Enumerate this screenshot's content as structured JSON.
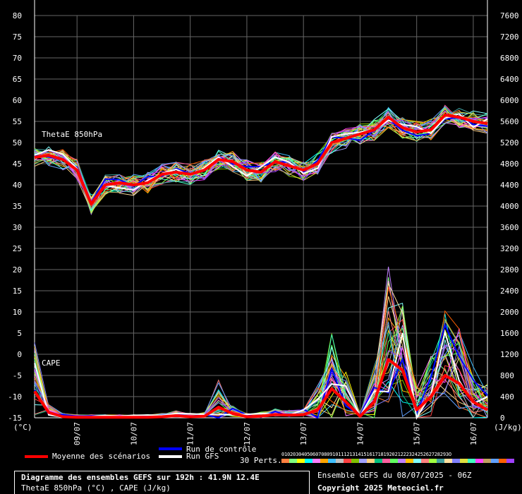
{
  "chart_data": {
    "type": "line",
    "left_axis": {
      "unit": "(°C)",
      "ticks": [
        "80",
        "75",
        "70",
        "65",
        "60",
        "55",
        "50",
        "45",
        "40",
        "35",
        "30",
        "25",
        "20",
        "15",
        "10",
        "5",
        "0",
        "-5",
        "-10",
        "-15"
      ],
      "range": [
        -15,
        80
      ]
    },
    "right_axis": {
      "unit": "(J/kg)",
      "ticks": [
        "7600",
        "7200",
        "6800",
        "6400",
        "6000",
        "5600",
        "5200",
        "4800",
        "4400",
        "4000",
        "3600",
        "3200",
        "2800",
        "2400",
        "2000",
        "1600",
        "1200",
        "800",
        "400",
        "0"
      ],
      "range": [
        0,
        7600
      ]
    },
    "x_ticks": [
      "09/07",
      "10/07",
      "11/07",
      "12/07",
      "13/07",
      "14/07",
      "15/07",
      "16/07"
    ],
    "grid": true,
    "annotations": {
      "thetae": "ThetaE 850hPa",
      "cape": "CAPE"
    },
    "series": [
      {
        "name": "ThetaE 850hPa",
        "role": "mean",
        "color": "#ff0000",
        "x_hours": [
          0,
          6,
          12,
          18,
          24,
          30,
          36,
          42,
          48,
          54,
          60,
          66,
          72,
          78,
          84,
          90,
          96,
          102,
          108,
          114,
          120,
          126,
          132,
          138,
          144,
          150,
          156,
          162,
          168,
          174,
          180,
          186,
          192
        ],
        "values": [
          46.5,
          47,
          46,
          43.5,
          35.5,
          40,
          40.5,
          40,
          40.5,
          42.5,
          43,
          42.5,
          43.5,
          46,
          45.5,
          43.5,
          43,
          45.5,
          44.5,
          43.5,
          45,
          50,
          51,
          52,
          53,
          56,
          53.5,
          52.5,
          53,
          56.5,
          56,
          55,
          54.5
        ]
      },
      {
        "name": "CAPE",
        "role": "mean",
        "color": "#ff0000",
        "x_hours": [
          0,
          6,
          12,
          18,
          24,
          30,
          36,
          42,
          48,
          54,
          60,
          66,
          72,
          78,
          84,
          90,
          96,
          102,
          108,
          114,
          120,
          126,
          132,
          138,
          144,
          150,
          156,
          162,
          168,
          174,
          180,
          186,
          192
        ],
        "values": [
          500,
          100,
          20,
          10,
          10,
          10,
          10,
          10,
          10,
          20,
          40,
          20,
          30,
          200,
          80,
          20,
          30,
          60,
          50,
          60,
          150,
          550,
          300,
          30,
          300,
          1100,
          900,
          150,
          400,
          800,
          650,
          300,
          150
        ]
      }
    ]
  },
  "legend": {
    "mean_label": "Moyenne des scénarios",
    "control_label": "Run de contrôle",
    "gfs_label": "Run GFS",
    "perts_label": "30 Perts.",
    "pert_numbers": "01020304050607080910111213141516171819202122232425262728293O",
    "colors": {
      "mean": "#ff0000",
      "control": "#0000ff",
      "gfs": "#ffffff"
    }
  },
  "info": {
    "title": "Diagramme des ensembles GEFS sur 192h : 41.9N 12.4E",
    "subtitle": "ThetaE 850hPa (°C) , CAPE (J/kg)",
    "run": "Ensemble GEFS du 08/07/2025 - 06Z",
    "copyright": "Copyright 2025 Meteociel.fr"
  }
}
